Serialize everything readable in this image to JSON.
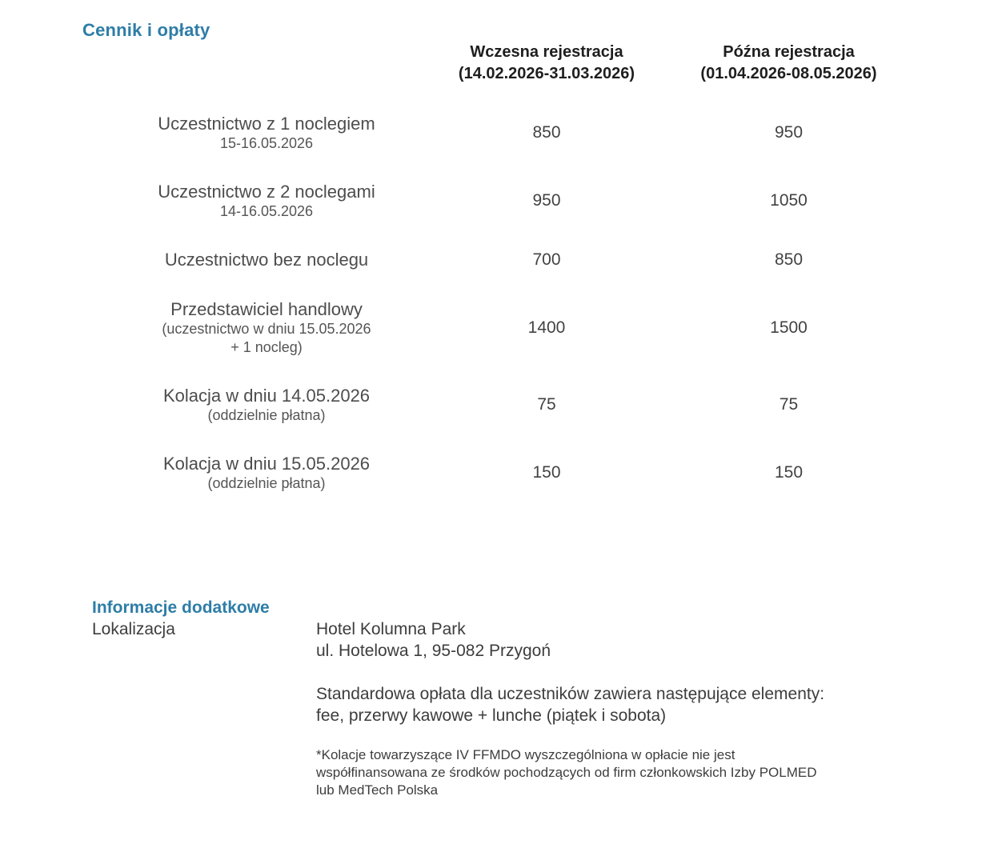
{
  "page": {
    "title": "Cennik i opłaty",
    "accent_color": "#2e7da7"
  },
  "pricing_table": {
    "columns": [
      {
        "label": "Wczesna rejestracja",
        "dates": "(14.02.2026-31.03.2026)"
      },
      {
        "label": "Późna rejestracja",
        "dates": "(01.04.2026-08.05.2026)"
      }
    ],
    "rows": [
      {
        "label": "Uczestnictwo z 1 noclegiem",
        "sublabel_lines": [
          "15-16.05.2026"
        ],
        "early": "850",
        "late": "950"
      },
      {
        "label": "Uczestnictwo z 2 noclegami",
        "sublabel_lines": [
          "14-16.05.2026"
        ],
        "early": "950",
        "late": "1050"
      },
      {
        "label": "Uczestnictwo bez noclegu",
        "sublabel_lines": [],
        "early": "700",
        "late": "850"
      },
      {
        "label": "Przedstawiciel handlowy",
        "sublabel_lines": [
          "(uczestnictwo w dniu 15.05.2026",
          "+ 1 nocleg)"
        ],
        "early": "1400",
        "late": "1500"
      },
      {
        "label": "Kolacja w dniu 14.05.2026",
        "sublabel_lines": [
          "(oddzielnie płatna)"
        ],
        "early": "75",
        "late": "75"
      },
      {
        "label": "Kolacja w dniu 15.05.2026",
        "sublabel_lines": [
          "(oddzielnie płatna)"
        ],
        "early": "150",
        "late": "150"
      }
    ]
  },
  "additional_info": {
    "title": "Informacje dodatkowe",
    "location_label": "Lokalizacja",
    "location_lines": [
      "Hotel Kolumna Park",
      "ul. Hotelowa 1, 95-082 Przygoń"
    ],
    "fee_lines": [
      "Standardowa opłata dla uczestników zawiera następujące elementy:",
      "fee, przerwy kawowe + lunche (piątek i sobota)"
    ],
    "note_lines": [
      "*Kolacje towarzyszące IV FFMDO wyszczególniona w opłacie nie jest",
      "współfinansowana ze środków pochodzących od firm członkowskich Izby POLMED",
      "lub MedTech Polska"
    ]
  }
}
